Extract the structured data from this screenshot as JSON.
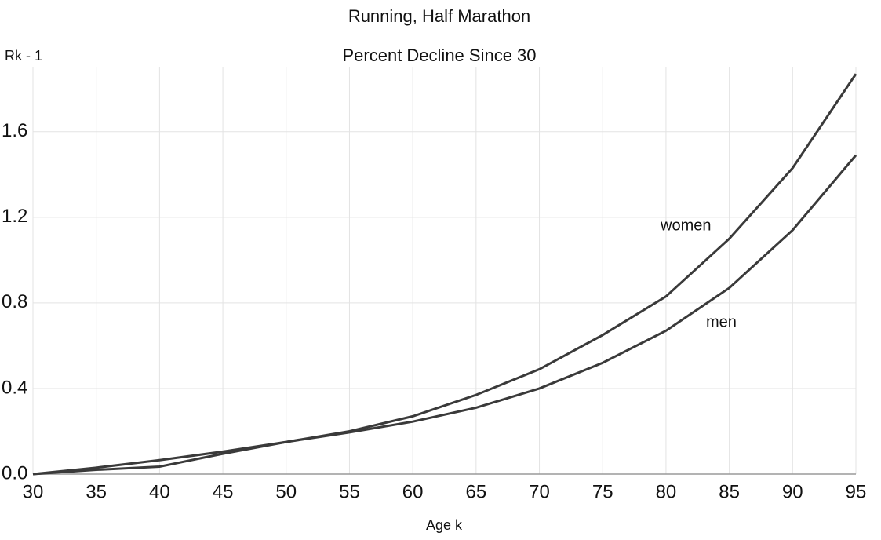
{
  "chart_data": {
    "type": "line",
    "title": "Running, Half Marathon",
    "subtitle": "Percent Decline Since 30",
    "y_label": "Rk - 1",
    "x_label": "Age k",
    "x": [
      30,
      35,
      40,
      45,
      50,
      55,
      60,
      65,
      70,
      75,
      80,
      85,
      90,
      95
    ],
    "series": [
      {
        "name": "women",
        "color": "#3a3a3a",
        "values": [
          0,
          0.02,
          0.035,
          0.095,
          0.15,
          0.2,
          0.27,
          0.37,
          0.49,
          0.65,
          0.83,
          1.1,
          1.43,
          1.87
        ]
      },
      {
        "name": "men",
        "color": "#3a3a3a",
        "values": [
          0,
          0.03,
          0.065,
          0.105,
          0.15,
          0.195,
          0.245,
          0.31,
          0.4,
          0.52,
          0.67,
          0.87,
          1.14,
          1.49
        ]
      }
    ],
    "xlim": [
      30,
      95
    ],
    "ylim": [
      0,
      1.9
    ],
    "xticks": [
      30,
      35,
      40,
      45,
      50,
      55,
      60,
      65,
      70,
      75,
      80,
      85,
      90,
      95
    ],
    "yticks": [
      {
        "value": 0,
        "label": "0.0"
      },
      0.4,
      0.8,
      1.2,
      1.6
    ],
    "grid": true
  }
}
